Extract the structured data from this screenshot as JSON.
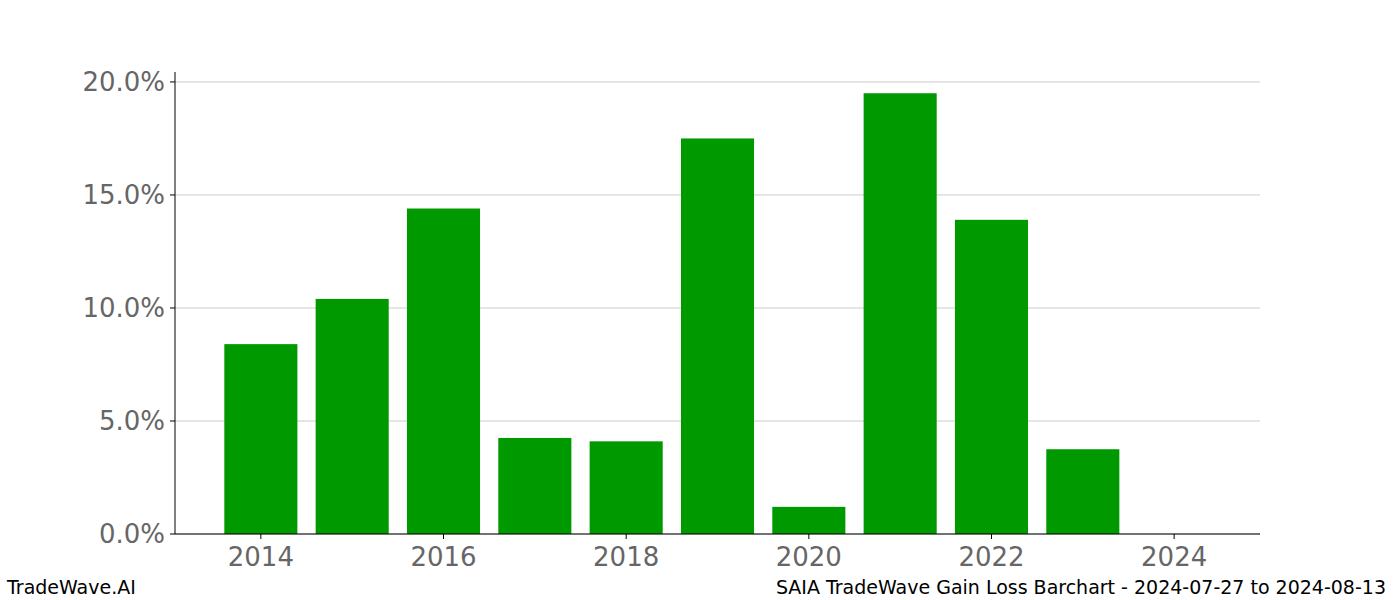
{
  "chart_data": {
    "type": "bar",
    "title": "SAIA TradeWave Gain Loss Barchart - 2024-07-27 to 2024-08-13",
    "footer": "TradeWave.AI",
    "x": [
      2014,
      2015,
      2016,
      2017,
      2018,
      2019,
      2020,
      2021,
      2022,
      2023,
      2024
    ],
    "values": [
      8.4,
      10.4,
      14.4,
      4.25,
      4.1,
      17.5,
      1.2,
      19.5,
      13.9,
      3.75,
      0
    ],
    "color": "#009900",
    "xlim": [
      2013.06,
      2024.94
    ],
    "xticks": [
      2014,
      2016,
      2018,
      2020,
      2022,
      2024
    ],
    "ylim": [
      0,
      20.44
    ],
    "yticks": [
      {
        "value": 0,
        "label": "0.0%"
      },
      {
        "value": 5,
        "label": "5.0%"
      },
      {
        "value": 10,
        "label": "10.0%"
      },
      {
        "value": 15,
        "label": "15.0%"
      },
      {
        "value": 20,
        "label": "20.0%"
      }
    ],
    "grid": true
  }
}
